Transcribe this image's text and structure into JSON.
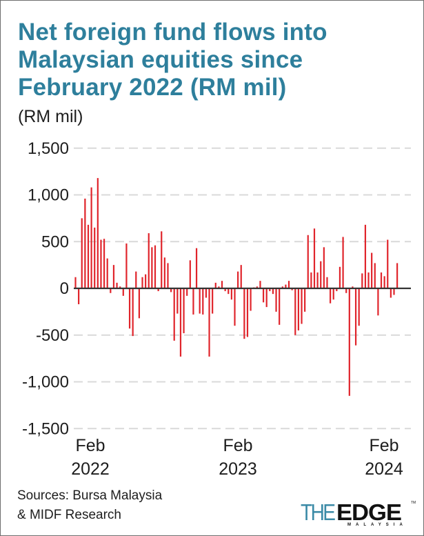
{
  "header": {
    "title": "Net foreign fund flows into Malaysian equities since February 2022 (RM mil)",
    "unit_label": "(RM mil)"
  },
  "footer": {
    "sources_line1": "Sources: Bursa Malaysia",
    "sources_line2": "& MIDF Research",
    "logo_the": "THE",
    "logo_edge": "EDGE",
    "logo_tm": "TM",
    "logo_sub": "MALAYSIA"
  },
  "colors": {
    "title": "#2e7f9c",
    "bar": "#e0242b",
    "gridline": "#d9d9d9",
    "zero_line": "#333333",
    "text": "#1d1d1d"
  },
  "chart_data": {
    "type": "bar",
    "title": "Net foreign fund flows into Malaysian equities since February 2022 (RM mil)",
    "xlabel": "",
    "ylabel": "(RM mil)",
    "ylim": [
      -1500,
      1500
    ],
    "yticks": [
      1500,
      1000,
      500,
      0,
      -500,
      -1000,
      -1500
    ],
    "ytick_labels": [
      "1,500",
      "1,000",
      "500",
      "0",
      "-500",
      "-1,000",
      "-1,500"
    ],
    "xtick_labels": [
      {
        "label_line1": "Feb",
        "label_line2": "2022",
        "index": 0
      },
      {
        "label_line1": "Feb",
        "label_line2": "2023",
        "index": 51
      },
      {
        "label_line1": "Feb",
        "label_line2": "2024",
        "index": 99
      }
    ],
    "grid": "horizontal dashed",
    "legend": "none",
    "frequency": "weekly",
    "series": [
      {
        "name": "Net foreign fund flows (RM mil)",
        "values": [
          120,
          -170,
          750,
          960,
          680,
          1080,
          650,
          1180,
          520,
          530,
          320,
          -50,
          250,
          60,
          20,
          -80,
          480,
          -430,
          -510,
          180,
          -320,
          120,
          150,
          590,
          440,
          460,
          -30,
          610,
          330,
          270,
          -40,
          -560,
          -270,
          -730,
          -480,
          -80,
          300,
          -280,
          430,
          -270,
          -280,
          -100,
          -730,
          -270,
          60,
          20,
          80,
          -30,
          -60,
          -120,
          -400,
          180,
          250,
          -540,
          -520,
          -240,
          10,
          20,
          80,
          -150,
          -200,
          -30,
          -60,
          -250,
          -390,
          20,
          40,
          80,
          -20,
          -500,
          -450,
          -380,
          -250,
          570,
          170,
          640,
          170,
          290,
          440,
          120,
          -160,
          -120,
          -30,
          230,
          550,
          -50,
          -1150,
          20,
          -610,
          -400,
          160,
          680,
          170,
          380,
          270,
          -290,
          170,
          130,
          520,
          -100,
          -70,
          270
        ]
      }
    ]
  }
}
